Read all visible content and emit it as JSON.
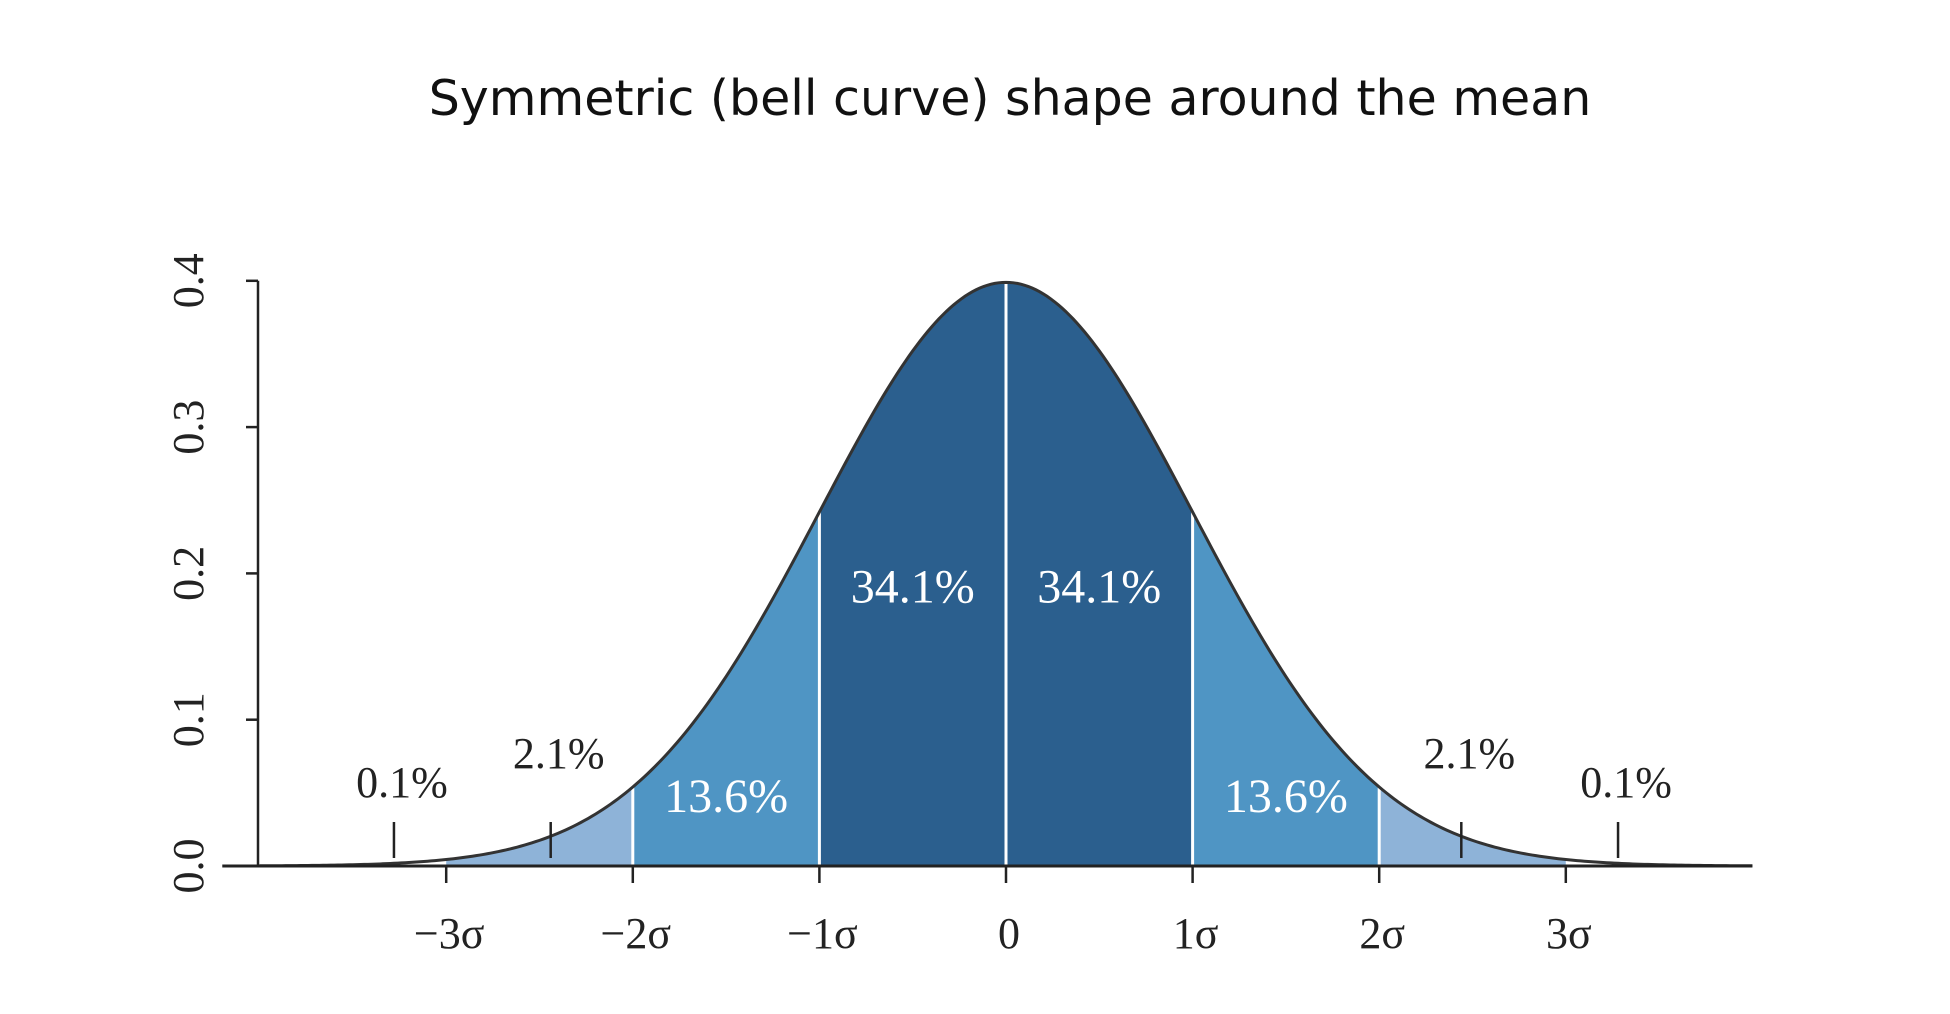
{
  "title": "Symmetric (bell curve) shape around the mean",
  "chart_data": {
    "type": "area",
    "title": "Symmetric (bell curve) shape around the mean",
    "xlabel": "",
    "ylabel": "",
    "xlim": [
      -4,
      4
    ],
    "ylim": [
      0,
      0.4
    ],
    "y_ticks": [
      "0.0",
      "0.1",
      "0.2",
      "0.3",
      "0.4"
    ],
    "x_ticks": [
      {
        "value": -3,
        "label": "−3σ"
      },
      {
        "value": -2,
        "label": "−2σ"
      },
      {
        "value": -1,
        "label": "−1σ"
      },
      {
        "value": 0,
        "label": "0"
      },
      {
        "value": 1,
        "label": "1σ"
      },
      {
        "value": 2,
        "label": "2σ"
      },
      {
        "value": 3,
        "label": "3σ"
      }
    ],
    "curve": {
      "distribution": "normal",
      "mean": 0,
      "sd": 1
    },
    "colors": {
      "dark": "#2b5f8e",
      "medium": "#4f95c4",
      "light": "#8eb3d8",
      "curve": "#333333"
    },
    "regions": [
      {
        "from": -3,
        "to": -2,
        "shade": "light"
      },
      {
        "from": -2,
        "to": -1,
        "shade": "medium",
        "label": "13.6%",
        "label_x": -1.5,
        "label_y": 0.037,
        "inside": true
      },
      {
        "from": -1,
        "to": 0,
        "shade": "dark",
        "label": "34.1%",
        "label_x": -0.5,
        "label_y": 0.18,
        "inside": true
      },
      {
        "from": 0,
        "to": 1,
        "shade": "dark",
        "label": "34.1%",
        "label_x": 0.5,
        "label_y": 0.18,
        "inside": true
      },
      {
        "from": 1,
        "to": 2,
        "shade": "medium",
        "label": "13.6%",
        "label_x": 1.5,
        "label_y": 0.037,
        "inside": true
      },
      {
        "from": 2,
        "to": 3,
        "shade": "light"
      }
    ],
    "outer_annotations": [
      {
        "label": "0.1%",
        "x": -3.28,
        "label_y": 0.047
      },
      {
        "label": "2.1%",
        "x": -2.44,
        "label_y": 0.067
      },
      {
        "label": "2.1%",
        "x": 2.44,
        "label_y": 0.067
      },
      {
        "label": "0.1%",
        "x": 3.28,
        "label_y": 0.047
      }
    ],
    "grid": false,
    "legend": "none"
  }
}
